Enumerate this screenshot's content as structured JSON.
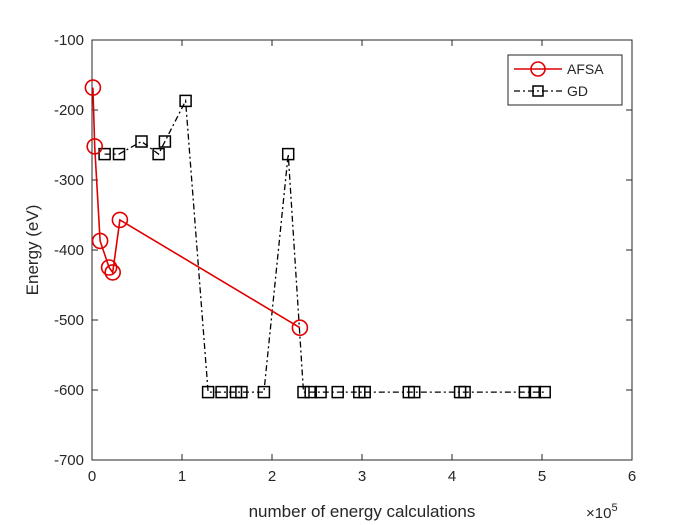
{
  "chart_data": {
    "type": "line",
    "title": "",
    "xlabel": "number of energy calculations",
    "ylabel": "Energy (eV)",
    "x_exponent_label": "×10",
    "x_exponent_power": "5",
    "xlim": [
      0,
      6
    ],
    "ylim": [
      -700,
      -100
    ],
    "x_scale_factor": 100000,
    "xticks": [
      0,
      1,
      2,
      3,
      4,
      5,
      6
    ],
    "yticks": [
      -100,
      -200,
      -300,
      -400,
      -500,
      -600,
      -700
    ],
    "grid": false,
    "legend_position": "top-right",
    "series": [
      {
        "name": "AFSA",
        "color": "#e00000",
        "line_style": "solid",
        "marker": "circle",
        "x": [
          0.01,
          0.03,
          0.09,
          0.19,
          0.23,
          0.31,
          2.31
        ],
        "y": [
          -168,
          -252,
          -387,
          -425,
          -432,
          -357,
          -511
        ]
      },
      {
        "name": "GD",
        "color": "#000000",
        "line_style": "dashdot",
        "marker": "square",
        "x": [
          0.14,
          0.3,
          0.55,
          0.74,
          0.81,
          1.04,
          1.29,
          1.44,
          1.6,
          1.66,
          1.91,
          2.18,
          2.35,
          2.43,
          2.54,
          2.73,
          2.97,
          3.03,
          3.52,
          3.58,
          4.09,
          4.14,
          4.81,
          4.92,
          5.03
        ],
        "y": [
          -263,
          -263,
          -245,
          -263,
          -245,
          -187,
          -603,
          -603,
          -603,
          -603,
          -603,
          -263,
          -603,
          -603,
          -603,
          -603,
          -603,
          -603,
          -603,
          -603,
          -603,
          -603,
          -603,
          -603,
          -603
        ]
      }
    ]
  }
}
